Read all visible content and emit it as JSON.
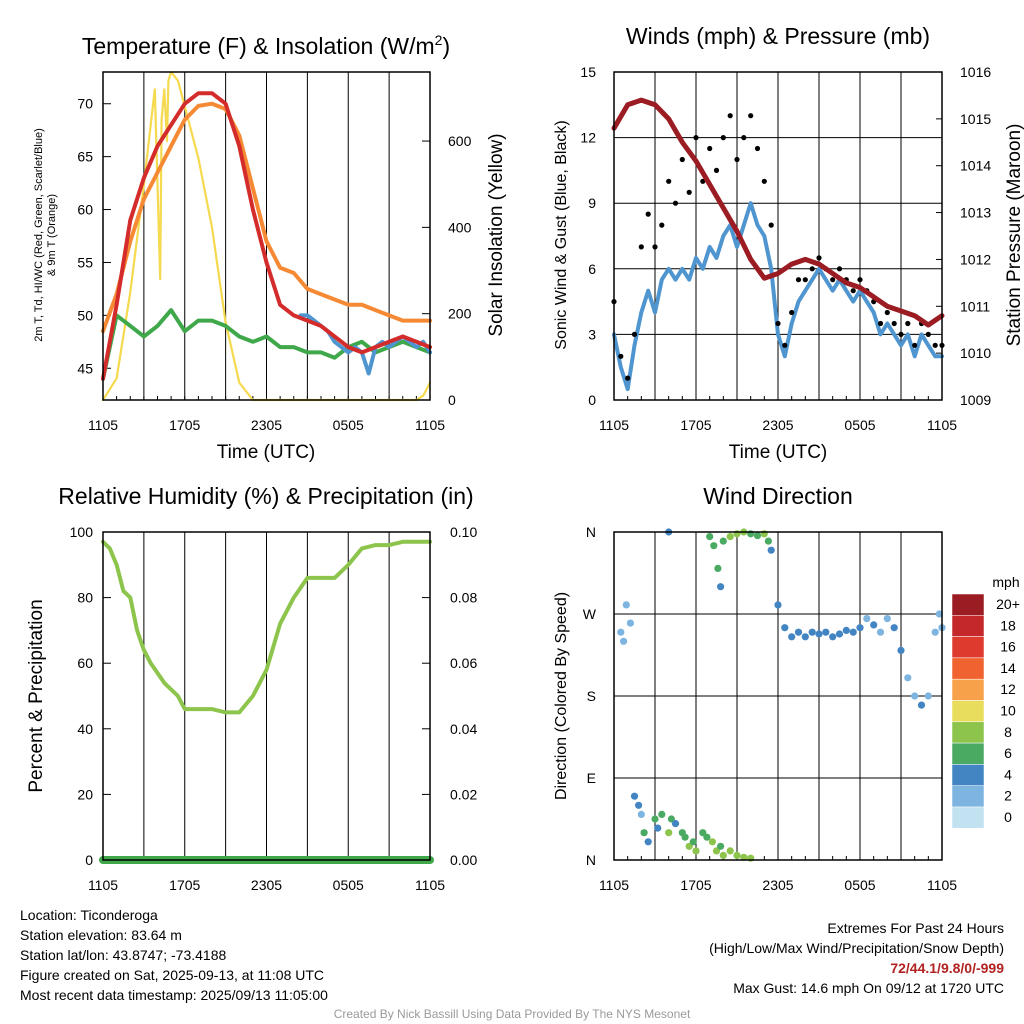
{
  "colors": {
    "red": "#d42b2b",
    "orange": "#f68a34",
    "green": "#3fa84a",
    "blue": "#4f95cf",
    "yellow": "#f5d94e",
    "maroon": "#9b1c22",
    "black": "#000000",
    "rh": "#8cc44c",
    "precip": "#3fa84a"
  },
  "chart_data": [
    {
      "id": "temperature",
      "type": "line",
      "title": "Temperature (F) & Insolation (W/m²)",
      "title_main": "Temperature (F) & Insolation (W/m",
      "title_sup": "2",
      "title_end": ")",
      "xlabel": "Time (UTC)",
      "ylabel_line1": "2m T, Td, HI/WC (Red, Green, Scarlet/Blue)",
      "ylabel_line2": "& 9m T (Orange)",
      "y2label": "Solar Insolation (Yellow)",
      "x_ticks": [
        "1105",
        "1705",
        "2305",
        "0505",
        "1105"
      ],
      "x_range_hours": [
        0,
        24
      ],
      "ylim": [
        42,
        73
      ],
      "y_ticks": [
        45,
        50,
        55,
        60,
        65,
        70
      ],
      "y2lim": [
        0,
        760
      ],
      "y2_ticks": [
        0,
        200,
        400,
        600
      ],
      "series": [
        {
          "color_key": "orange",
          "x": [
            0,
            1,
            2,
            3,
            4,
            5,
            6,
            7,
            8,
            9,
            10,
            11,
            12,
            13,
            14,
            15,
            16,
            17,
            18,
            19,
            20,
            21,
            22,
            23,
            24
          ],
          "values": [
            48.5,
            52,
            57,
            61,
            63.5,
            66,
            68.5,
            69.8,
            70,
            69.5,
            67,
            62,
            57,
            54.5,
            54,
            52.5,
            52,
            51.5,
            51,
            51,
            50.5,
            50,
            49.5,
            49.5,
            49.5
          ]
        },
        {
          "color_key": "red",
          "x": [
            0,
            1,
            2,
            3,
            4,
            5,
            6,
            7,
            8,
            9,
            10,
            11,
            12,
            13,
            14,
            15,
            16,
            17,
            18,
            19,
            20,
            21,
            22,
            23,
            24
          ],
          "values": [
            44,
            51,
            59,
            63,
            66,
            68,
            70,
            71,
            71,
            70,
            66,
            60,
            55,
            51,
            50,
            49.5,
            49,
            48,
            47,
            46.5,
            47,
            47.5,
            48,
            47.5,
            47
          ]
        },
        {
          "color_key": "green",
          "x": [
            0,
            1,
            2,
            3,
            4,
            5,
            6,
            7,
            8,
            9,
            10,
            11,
            12,
            13,
            14,
            15,
            16,
            17,
            18,
            19,
            20,
            21,
            22,
            23,
            24
          ],
          "values": [
            44,
            50,
            49,
            48,
            49,
            50.5,
            48.5,
            49.5,
            49.5,
            49,
            48,
            47.5,
            48,
            47,
            47,
            46.5,
            46.5,
            46,
            47,
            47.5,
            46.5,
            47,
            47.5,
            47,
            46.5
          ]
        },
        {
          "color_key": "blue",
          "x": [
            14.5,
            15,
            15.5,
            16,
            16.5,
            17,
            17.5,
            18,
            18.5,
            19,
            19.5,
            20,
            20.5,
            21,
            21.5,
            22,
            22.5,
            23,
            23.5,
            24
          ],
          "values": [
            50,
            50,
            49.5,
            49,
            48.5,
            47.5,
            47,
            46.5,
            47,
            46.5,
            44.5,
            47,
            47.5,
            47,
            47.5,
            48,
            47.5,
            47,
            47.5,
            46.5
          ]
        },
        {
          "color_key": "yellow",
          "axis": "y2",
          "x": [
            0,
            1,
            2,
            3,
            3.8,
            4.2,
            4.3,
            4.5,
            4.7,
            4.8,
            5,
            5.5,
            6,
            7,
            8,
            9,
            10,
            11,
            12,
            13,
            14,
            15,
            16,
            17,
            18,
            19,
            20,
            21,
            22,
            23,
            23.5,
            24
          ],
          "values": [
            0,
            50,
            250,
            500,
            720,
            280,
            650,
            720,
            600,
            740,
            760,
            740,
            680,
            560,
            400,
            180,
            40,
            0,
            0,
            0,
            0,
            0,
            0,
            0,
            0,
            0,
            0,
            0,
            0,
            0,
            10,
            40
          ]
        }
      ]
    },
    {
      "id": "winds",
      "type": "line",
      "title": "Winds (mph) & Pressure (mb)",
      "xlabel": "Time (UTC)",
      "ylabel": "Sonic Wind & Gust (Blue, Black)",
      "y2label": "Station Pressure (Maroon)",
      "x_ticks": [
        "1105",
        "1705",
        "2305",
        "0505",
        "1105"
      ],
      "x_range_hours": [
        0,
        24
      ],
      "ylim": [
        0,
        15
      ],
      "y_ticks": [
        0,
        3,
        6,
        9,
        12,
        15
      ],
      "y2lim": [
        1009,
        1016
      ],
      "y2_ticks": [
        1009,
        1010,
        1011,
        1012,
        1013,
        1014,
        1015,
        1016
      ],
      "series": [
        {
          "color_key": "blue",
          "x": [
            0,
            0.5,
            1,
            1.5,
            2,
            2.5,
            3,
            3.5,
            4,
            4.5,
            5,
            5.5,
            6,
            6.5,
            7,
            7.5,
            8,
            8.5,
            9,
            9.5,
            10,
            10.5,
            11,
            11.5,
            12,
            12.5,
            13,
            13.5,
            14,
            14.5,
            15,
            15.5,
            16,
            16.5,
            17,
            17.5,
            18,
            18.5,
            19,
            19.5,
            20,
            20.5,
            21,
            21.5,
            22,
            22.5,
            23,
            23.5,
            24
          ],
          "values": [
            3,
            1.5,
            0.5,
            2.5,
            4,
            5,
            4,
            5.5,
            6,
            5.5,
            6,
            5.5,
            6.5,
            6,
            7,
            6.5,
            7.5,
            8,
            7,
            8,
            9,
            8,
            7.5,
            6,
            3,
            2,
            3.5,
            4.5,
            5,
            5.5,
            6,
            5.5,
            5,
            5.5,
            5,
            4.5,
            5,
            4.5,
            4,
            3,
            3.5,
            3,
            2.5,
            3,
            2,
            3,
            2.5,
            2,
            2
          ]
        },
        {
          "color_key": "black",
          "type": "scatter",
          "x": [
            0,
            0.5,
            1,
            1.5,
            2,
            2.5,
            3,
            3.5,
            4,
            4.5,
            5,
            5.5,
            6,
            6.5,
            7,
            7.5,
            8,
            8.5,
            9,
            9.5,
            10,
            10.5,
            11,
            11.5,
            12,
            12.5,
            13,
            13.5,
            14,
            14.5,
            15,
            15.5,
            16,
            16.5,
            17,
            17.5,
            18,
            18.5,
            19,
            19.5,
            20,
            20.5,
            21,
            21.5,
            22,
            22.5,
            23,
            23.5,
            24
          ],
          "values": [
            4.5,
            2,
            1,
            3,
            7,
            8.5,
            7,
            8,
            10,
            9,
            11,
            9.5,
            12,
            10,
            11.5,
            10.5,
            12,
            13,
            11,
            12,
            13,
            11.5,
            10,
            8,
            3.5,
            2.5,
            4,
            5.5,
            5.5,
            6,
            6.5,
            6,
            5.5,
            6,
            5.5,
            5,
            5.5,
            5,
            4.5,
            3.5,
            4,
            3.5,
            3,
            3.5,
            2.5,
            3.5,
            3,
            2.5,
            2.5
          ]
        },
        {
          "color_key": "maroon",
          "axis": "y2",
          "x": [
            0,
            1,
            2,
            3,
            4,
            5,
            6,
            7,
            8,
            9,
            10,
            11,
            12,
            13,
            14,
            15,
            16,
            17,
            18,
            19,
            20,
            21,
            22,
            23,
            24
          ],
          "values": [
            1014.8,
            1015.3,
            1015.4,
            1015.3,
            1015.0,
            1014.5,
            1014.1,
            1013.6,
            1013.1,
            1012.6,
            1012.0,
            1011.6,
            1011.7,
            1011.9,
            1012.0,
            1011.9,
            1011.7,
            1011.5,
            1011.4,
            1011.2,
            1011.0,
            1010.9,
            1010.8,
            1010.6,
            1010.8
          ]
        }
      ]
    },
    {
      "id": "humidity",
      "type": "line",
      "title": "Relative Humidity (%) & Precipitation (in)",
      "ylabel": "Percent & Precipitation",
      "x_ticks": [
        "1105",
        "1705",
        "2305",
        "0505",
        "1105"
      ],
      "x_range_hours": [
        0,
        24
      ],
      "ylim": [
        0,
        100
      ],
      "y_ticks": [
        0,
        20,
        40,
        60,
        80,
        100
      ],
      "y2lim": [
        0,
        0.1
      ],
      "y2_ticks": [
        "0.00",
        "0.02",
        "0.04",
        "0.06",
        "0.08",
        "0.10"
      ],
      "series": [
        {
          "color_key": "rh",
          "x": [
            0,
            0.5,
            1,
            1.5,
            2,
            2.5,
            3,
            3.5,
            4,
            4.5,
            5,
            5.5,
            6,
            7,
            8,
            9,
            10,
            11,
            12,
            13,
            14,
            15,
            16,
            17,
            18,
            19,
            20,
            21,
            22,
            23,
            24
          ],
          "values": [
            97,
            95,
            90,
            82,
            80,
            70,
            64,
            60,
            57,
            54,
            52,
            50,
            46,
            46,
            46,
            45,
            45,
            50,
            58,
            72,
            80,
            86,
            86,
            86,
            90,
            95,
            96,
            96,
            97,
            97,
            97
          ]
        },
        {
          "color_key": "precip",
          "axis": "y2",
          "x": [
            0,
            24
          ],
          "values": [
            0,
            0
          ]
        }
      ]
    },
    {
      "id": "direction",
      "type": "scatter",
      "title": "Wind Direction",
      "ylabel": "Direction (Colored By Speed)",
      "x_ticks": [
        "1105",
        "1705",
        "2305",
        "0505",
        "1105"
      ],
      "x_range_hours": [
        0,
        24
      ],
      "ylim": [
        0,
        360
      ],
      "y_tick_labels": [
        "N",
        "E",
        "S",
        "W",
        "N"
      ],
      "legend_title": "mph",
      "legend_labels": [
        "20+",
        "18",
        "16",
        "14",
        "12",
        "10",
        "8",
        "6",
        "4",
        "2",
        "0"
      ],
      "legend_colors": [
        "#9b1c22",
        "#c4282a",
        "#df3a2e",
        "#f0622f",
        "#f7a24b",
        "#e8dd5c",
        "#8cc44c",
        "#4aaa62",
        "#4285c2",
        "#7db4e0",
        "#c2e2f2"
      ],
      "points": [
        [
          0.5,
          250,
          2
        ],
        [
          0.7,
          240,
          2
        ],
        [
          0.9,
          280,
          1
        ],
        [
          1.2,
          260,
          1
        ],
        [
          1.5,
          70,
          3
        ],
        [
          1.8,
          60,
          4
        ],
        [
          2.0,
          50,
          2
        ],
        [
          2.2,
          30,
          5
        ],
        [
          2.5,
          20,
          4
        ],
        [
          3.0,
          45,
          6
        ],
        [
          3.2,
          35,
          3
        ],
        [
          3.5,
          50,
          5
        ],
        [
          4.0,
          30,
          7
        ],
        [
          4.2,
          45,
          6
        ],
        [
          4.5,
          40,
          3
        ],
        [
          5.0,
          30,
          6
        ],
        [
          5.2,
          25,
          5
        ],
        [
          5.5,
          15,
          7
        ],
        [
          5.8,
          20,
          6
        ],
        [
          6.0,
          10,
          7
        ],
        [
          6.5,
          30,
          5
        ],
        [
          6.8,
          25,
          6
        ],
        [
          7.2,
          20,
          7
        ],
        [
          7.5,
          10,
          7
        ],
        [
          7.8,
          15,
          6
        ],
        [
          8.0,
          5,
          7
        ],
        [
          8.5,
          10,
          7
        ],
        [
          9.0,
          5,
          8
        ],
        [
          9.5,
          3,
          8
        ],
        [
          10.0,
          2,
          7
        ],
        [
          4.0,
          360,
          4
        ],
        [
          7.0,
          355,
          6
        ],
        [
          7.3,
          345,
          5
        ],
        [
          7.6,
          320,
          6
        ],
        [
          7.8,
          300,
          4
        ],
        [
          8.0,
          350,
          6
        ],
        [
          8.5,
          355,
          7
        ],
        [
          9.0,
          358,
          7
        ],
        [
          9.5,
          360,
          8
        ],
        [
          10,
          358,
          6
        ],
        [
          10.5,
          356,
          6
        ],
        [
          11,
          358,
          7
        ],
        [
          11.3,
          350,
          5
        ],
        [
          11.5,
          340,
          4
        ],
        [
          12,
          280,
          3
        ],
        [
          12.5,
          255,
          4
        ],
        [
          13,
          245,
          3
        ],
        [
          13.5,
          250,
          4
        ],
        [
          14,
          245,
          3
        ],
        [
          14.5,
          250,
          4
        ],
        [
          15,
          248,
          4
        ],
        [
          15.5,
          250,
          3
        ],
        [
          16,
          245,
          4
        ],
        [
          16.5,
          248,
          4
        ],
        [
          17,
          252,
          3
        ],
        [
          17.5,
          250,
          4
        ],
        [
          18,
          255,
          3
        ],
        [
          18.5,
          265,
          2
        ],
        [
          19,
          258,
          3
        ],
        [
          19.5,
          250,
          2
        ],
        [
          20,
          265,
          2
        ],
        [
          20.5,
          255,
          3
        ],
        [
          21,
          230,
          3
        ],
        [
          21.5,
          200,
          2
        ],
        [
          22,
          180,
          2
        ],
        [
          22.5,
          170,
          3
        ],
        [
          23,
          180,
          2
        ],
        [
          23.5,
          250,
          2
        ],
        [
          23.8,
          270,
          2
        ],
        [
          24,
          255,
          2
        ]
      ]
    }
  ],
  "info_left": {
    "location": "Location: Ticonderoga",
    "elevation": "Station elevation: 83.64 m",
    "latlon": "Station lat/lon: 43.8747; -73.4188",
    "created": "Figure created on Sat, 2025-09-13, at 11:08 UTC",
    "recent": "Most recent data timestamp: 2025/09/13 11:05:00"
  },
  "info_right": {
    "heading": "Extremes For Past 24 Hours",
    "subheading": "(High/Low/Max Wind/Precipitation/Snow Depth)",
    "extremes": "72/44.1/9.8/0/-999",
    "max_gust": "Max Gust: 14.6 mph On 09/12 at 1720 UTC"
  },
  "credit": "Created By Nick Bassill Using Data Provided By The NYS Mesonet"
}
